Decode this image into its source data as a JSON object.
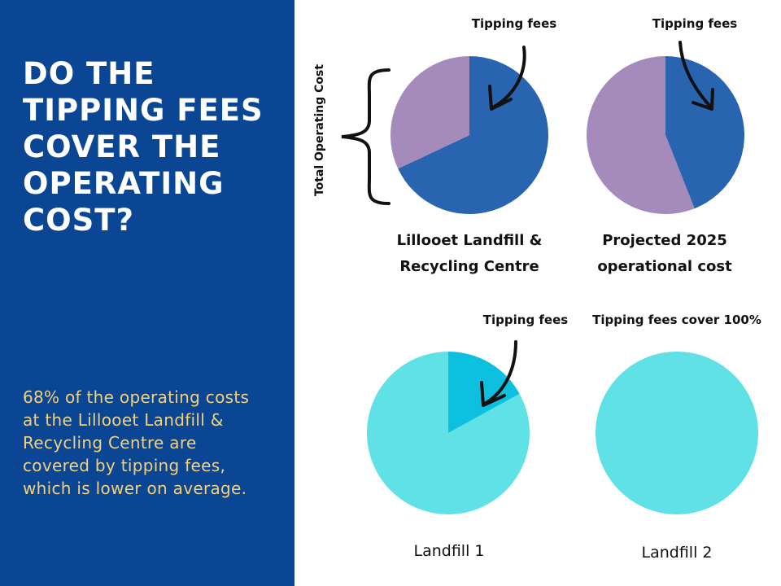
{
  "headline": "DO THE TIPPING FEES COVER THE OPERATING COST?",
  "summary": "68% of the operating costs at the Lillooet Landfill & Recycling Centre are covered by tipping fees, which is lower on average.",
  "axis_label": "Total Operating Cost",
  "colors": {
    "sidebar_bg": "#0a4694",
    "headline": "#ffffff",
    "summary_text": "#f3d27a",
    "tipping_dark": "#2864b0",
    "remainder_purple": "#a58bbb",
    "tipping_cyan": "#0ec0df",
    "remainder_light_cyan": "#5fe1e6"
  },
  "chart_data": [
    {
      "type": "pie",
      "title": "Lillooet Landfill & Recycling Centre",
      "labels": [
        "Tipping fees",
        ""
      ],
      "values": [
        68,
        32
      ],
      "colors": [
        "#2864b0",
        "#a58bbb"
      ],
      "annotation": "Tipping fees"
    },
    {
      "type": "pie",
      "title": "Projected 2025 operational cost",
      "labels": [
        "Tipping fees",
        ""
      ],
      "values": [
        44,
        56
      ],
      "colors": [
        "#2864b0",
        "#a58bbb"
      ],
      "annotation": "Tipping fees"
    },
    {
      "type": "pie",
      "title": "Landfill 1",
      "labels": [
        "Tipping fees",
        ""
      ],
      "values": [
        83,
        17
      ],
      "colors": [
        "#5fe1e6",
        "#0ec0df"
      ],
      "annotation": "Tipping fees"
    },
    {
      "type": "pie",
      "title": "Landfill 2",
      "labels": [
        "Tipping fees"
      ],
      "values": [
        100
      ],
      "colors": [
        "#5fe1e6"
      ],
      "annotation": "Tipping fees cover 100%"
    }
  ]
}
